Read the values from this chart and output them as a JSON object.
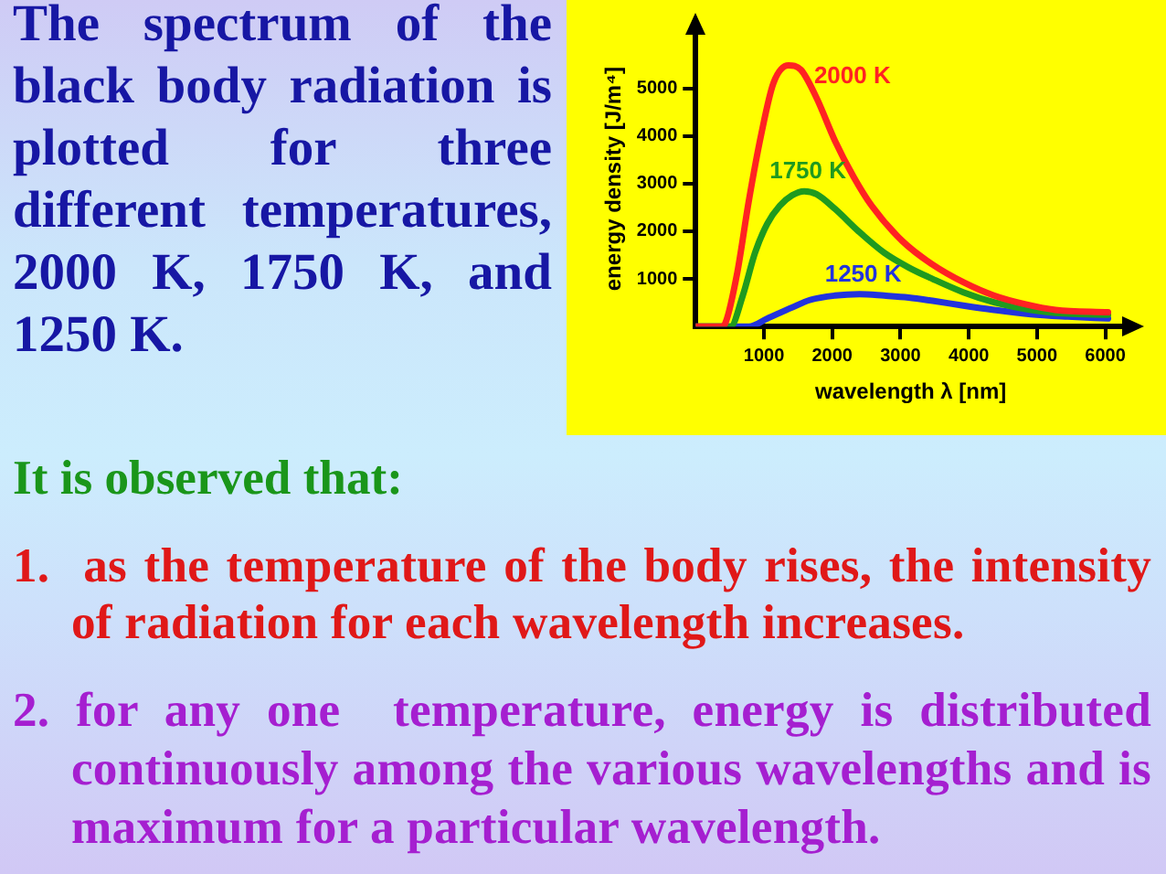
{
  "chart_data": {
    "type": "line",
    "title": "The spectrum of the black body radiation is plotted for three different temperatures, 2000 K, 1750 K, and 1250 K.",
    "xlabel": "wavelength λ [nm]",
    "ylabel": "energy density [J/m⁴]",
    "annotations": [
      "It is observed that:",
      "1.  as the temperature of the body rises, the intensity of radiation for each wavelength increases.",
      "2. for any one  temperature, energy is distributed continuously among the various wavelengths and is maximum for a particular wavelength."
    ],
    "xlim": [
      0,
      6300
    ],
    "ylim": [
      0,
      6200
    ],
    "xticks": [
      1000,
      2000,
      3000,
      4000,
      5000,
      6000
    ],
    "yticks": [
      1000,
      2000,
      3000,
      4000,
      5000
    ],
    "grid": false,
    "legend": false,
    "marker": "none",
    "line_style": "solid",
    "series": [
      {
        "name": "2000 K",
        "color": "#ff2222",
        "x": [
          0,
          380,
          420,
          600,
          780,
          960,
          1140,
          1360,
          1540,
          1770,
          2040,
          2310,
          2580,
          3030,
          3470,
          3920,
          4370,
          4820,
          5270,
          6040
        ],
        "values": [
          0,
          0,
          30,
          1060,
          2650,
          4030,
          5110,
          5480,
          5390,
          4800,
          3900,
          3150,
          2530,
          1790,
          1300,
          930,
          650,
          470,
          350,
          300
        ]
      },
      {
        "name": "1750 K",
        "color": "#1f9a1f",
        "x": [
          0,
          510,
          690,
          870,
          1050,
          1230,
          1410,
          1590,
          1770,
          2040,
          2400,
          2760,
          3120,
          3470,
          3920,
          4370,
          4910,
          5450,
          6040
        ],
        "values": [
          0,
          0,
          650,
          1550,
          2160,
          2530,
          2750,
          2840,
          2780,
          2470,
          1980,
          1550,
          1240,
          1000,
          720,
          510,
          350,
          270,
          250
        ]
      },
      {
        "name": "1250 K",
        "color": "#2233dd",
        "x": [
          0,
          780,
          1050,
          1410,
          1680,
          2040,
          2400,
          2760,
          3120,
          3470,
          3920,
          4370,
          4910,
          5450,
          6040
        ],
        "values": [
          0,
          0,
          170,
          400,
          560,
          650,
          680,
          650,
          610,
          540,
          440,
          350,
          260,
          210,
          170
        ]
      }
    ]
  }
}
